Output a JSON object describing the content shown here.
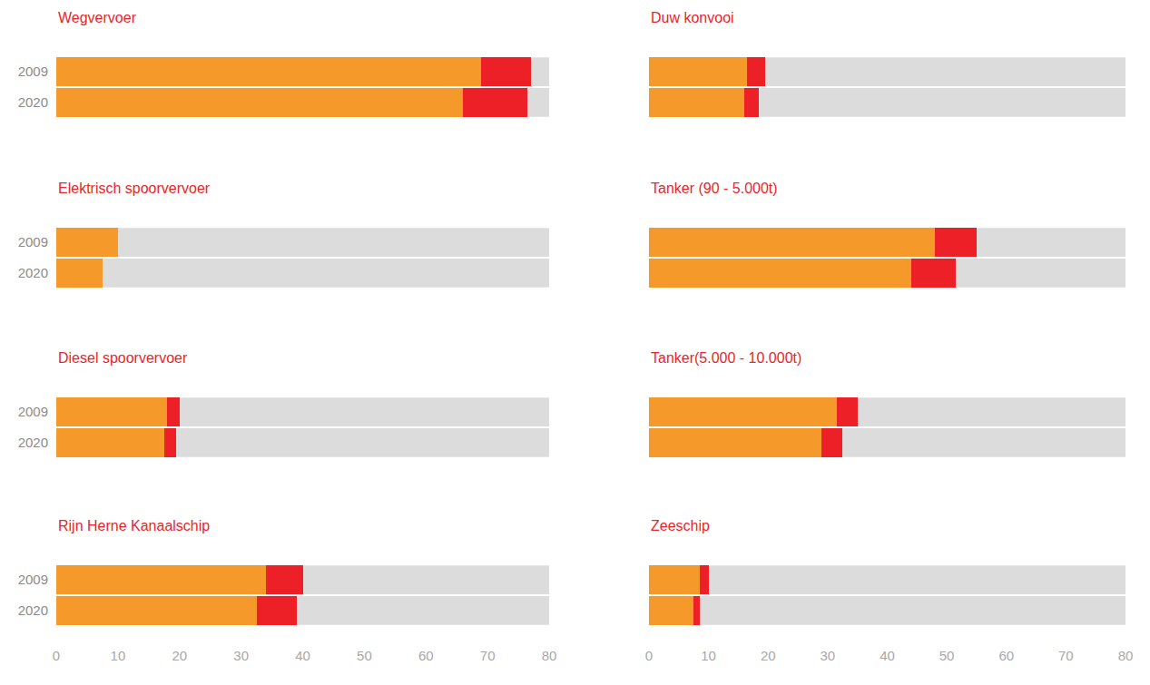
{
  "chart_data": [
    {
      "type": "bar",
      "title": "Wegvervoer",
      "orientation": "horizontal",
      "stacked": true,
      "categories": [
        "2009",
        "2020"
      ],
      "series": [
        {
          "color": "#f59a2a",
          "values": [
            69,
            66
          ]
        },
        {
          "color": "#ed2027",
          "values": [
            8,
            10.5
          ]
        }
      ],
      "xlim": [
        0,
        80
      ],
      "xticks": [
        0,
        10,
        20,
        30,
        40,
        50,
        60,
        70,
        80
      ],
      "tick_labels": "y"
    },
    {
      "type": "bar",
      "title": "Duw konvooi",
      "orientation": "horizontal",
      "stacked": true,
      "categories": [
        "2009",
        "2020"
      ],
      "series": [
        {
          "color": "#f59a2a",
          "values": [
            16.5,
            16
          ]
        },
        {
          "color": "#ed2027",
          "values": [
            3,
            2.5
          ]
        }
      ],
      "xlim": [
        0,
        80
      ],
      "xticks": [
        0,
        10,
        20,
        30,
        40,
        50,
        60,
        70,
        80
      ],
      "tick_labels": false
    },
    {
      "type": "bar",
      "title": "Elektrisch spoorvervoer",
      "orientation": "horizontal",
      "stacked": true,
      "categories": [
        "2009",
        "2020"
      ],
      "series": [
        {
          "color": "#f59a2a",
          "values": [
            10,
            7.5
          ]
        },
        {
          "color": "#ed2027",
          "values": [
            0,
            0
          ]
        }
      ],
      "xlim": [
        0,
        80
      ],
      "xticks": [
        0,
        10,
        20,
        30,
        40,
        50,
        60,
        70,
        80
      ],
      "tick_labels": "y"
    },
    {
      "type": "bar",
      "title": "Tanker (90 - 5.000t)",
      "orientation": "horizontal",
      "stacked": true,
      "categories": [
        "2009",
        "2020"
      ],
      "series": [
        {
          "color": "#f59a2a",
          "values": [
            48,
            44
          ]
        },
        {
          "color": "#ed2027",
          "values": [
            7,
            7.5
          ]
        }
      ],
      "xlim": [
        0,
        80
      ],
      "xticks": [
        0,
        10,
        20,
        30,
        40,
        50,
        60,
        70,
        80
      ],
      "tick_labels": false
    },
    {
      "type": "bar",
      "title": "Diesel spoorvervoer",
      "orientation": "horizontal",
      "stacked": true,
      "categories": [
        "2009",
        "2020"
      ],
      "series": [
        {
          "color": "#f59a2a",
          "values": [
            18,
            17.5
          ]
        },
        {
          "color": "#ed2027",
          "values": [
            2,
            2
          ]
        }
      ],
      "xlim": [
        0,
        80
      ],
      "xticks": [
        0,
        10,
        20,
        30,
        40,
        50,
        60,
        70,
        80
      ],
      "tick_labels": "y"
    },
    {
      "type": "bar",
      "title": "Tanker(5.000 - 10.000t)",
      "orientation": "horizontal",
      "stacked": true,
      "categories": [
        "2009",
        "2020"
      ],
      "series": [
        {
          "color": "#f59a2a",
          "values": [
            31.5,
            29
          ]
        },
        {
          "color": "#ed2027",
          "values": [
            3.5,
            3.5
          ]
        }
      ],
      "xlim": [
        0,
        80
      ],
      "xticks": [
        0,
        10,
        20,
        30,
        40,
        50,
        60,
        70,
        80
      ],
      "tick_labels": false
    },
    {
      "type": "bar",
      "title": "Rijn Herne Kanaalschip",
      "orientation": "horizontal",
      "stacked": true,
      "categories": [
        "2009",
        "2020"
      ],
      "series": [
        {
          "color": "#f59a2a",
          "values": [
            34,
            32.5
          ]
        },
        {
          "color": "#ed2027",
          "values": [
            6,
            6.5
          ]
        }
      ],
      "xlim": [
        0,
        80
      ],
      "xticks": [
        0,
        10,
        20,
        30,
        40,
        50,
        60,
        70,
        80
      ]
    },
    {
      "type": "bar",
      "title": "Zeeschip",
      "orientation": "horizontal",
      "stacked": true,
      "categories": [
        "2009",
        "2020"
      ],
      "series": [
        {
          "color": "#f59a2a",
          "values": [
            8.5,
            7.5
          ]
        },
        {
          "color": "#ed2027",
          "values": [
            1.5,
            1
          ]
        }
      ],
      "xlim": [
        0,
        80
      ],
      "xticks": [
        0,
        10,
        20,
        30,
        40,
        50,
        60,
        70,
        80
      ],
      "tick_labels": "x"
    }
  ]
}
